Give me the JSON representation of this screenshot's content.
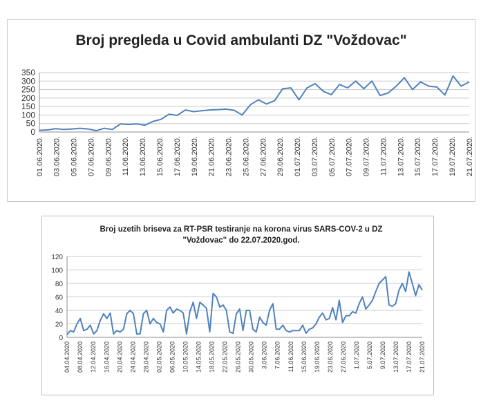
{
  "chart_data": [
    {
      "type": "line",
      "title": "Broj pregleda u Covid ambulanti DZ \"Voždovac\"",
      "xlabel": "",
      "ylabel": "",
      "ylim": [
        0,
        350
      ],
      "yticks": [
        0,
        50,
        100,
        150,
        200,
        250,
        300,
        350
      ],
      "grid": "horizontal",
      "legend": "none",
      "line_color": "#4f81bd",
      "x_tick_labels": [
        "01.06.2020.",
        "03.06.2020.",
        "05.06.2020.",
        "07.06.2020.",
        "09.06.2020.",
        "11.06.2020.",
        "13.06.2020.",
        "15.06.2020.",
        "17.06.2020.",
        "19.06.2020.",
        "21.06.2020.",
        "23.06.2020.",
        "25.06.2020.",
        "27.06.2020.",
        "29.06.2020.",
        "01.07.2020.",
        "03.07.2020.",
        "05.07.2020.",
        "07.07.2020.",
        "09.07.2020.",
        "11.07.2020.",
        "13.07.2020.",
        "15.07.2020.",
        "17.07.2020.",
        "19.07.2020.",
        "21.07.2020."
      ],
      "x_start": "01.06.2020.",
      "x_end": "22.07.2020.",
      "series": [
        {
          "values": [
            10,
            12,
            20,
            15,
            18,
            22,
            18,
            8,
            22,
            15,
            48,
            45,
            48,
            40,
            62,
            75,
            105,
            98,
            130,
            120,
            125,
            130,
            132,
            135,
            128,
            100,
            160,
            190,
            165,
            185,
            255,
            260,
            190,
            260,
            285,
            240,
            220,
            280,
            260,
            300,
            255,
            300,
            215,
            230,
            270,
            320,
            250,
            295,
            270,
            265,
            218,
            330,
            270,
            295
          ]
        }
      ]
    },
    {
      "type": "line",
      "title": "Broj uzetih briseva za RT-PSR testiranje na korona  virus SARS-COV-2 u DZ \"Voždovac\" do 22.07.2020.god.",
      "title_lines": [
        "Broj uzetih briseva za RT-PSR testiranje na korona  virus SARS-COV-2 u DZ",
        "\"Voždovac\" do 22.07.2020.god."
      ],
      "xlabel": "",
      "ylabel": "",
      "ylim": [
        0,
        120
      ],
      "yticks": [
        0,
        20,
        40,
        60,
        80,
        100,
        120
      ],
      "grid": "horizontal",
      "legend": "none",
      "line_color": "#4f81bd",
      "x_tick_labels": [
        "04.04.2020",
        "08.04.2020",
        "12.04.2020",
        "16.04.2020",
        "20.04.2020",
        "24.04.2020",
        "28.04.2020",
        "02.05.2020",
        "06.05.2020",
        "10.05.2020",
        "14.05.2020",
        "18.05.2020",
        "22.05.2020",
        "26.05.2020",
        "30.05.2020",
        "3.06.2020",
        "7.06.2020",
        "11.06.2020",
        "15.06.2020",
        "19.06.2020",
        "23.06.2020",
        "27.06.2020",
        "1.07.2020",
        "5.07.2020",
        "9.07.2020",
        "13.07.2020",
        "17.07.2020",
        "21.07.2020"
      ],
      "x_start": "04.04.2020",
      "x_end": "22.07.2020",
      "series": [
        {
          "values": [
            4,
            10,
            8,
            20,
            28,
            10,
            12,
            18,
            5,
            10,
            25,
            35,
            28,
            36,
            5,
            10,
            8,
            12,
            35,
            40,
            35,
            5,
            5,
            35,
            40,
            20,
            28,
            22,
            20,
            8,
            40,
            45,
            36,
            42,
            40,
            36,
            5,
            38,
            52,
            28,
            52,
            48,
            43,
            8,
            65,
            60,
            45,
            48,
            40,
            8,
            6,
            35,
            42,
            10,
            40,
            40,
            12,
            8,
            30,
            22,
            18,
            40,
            50,
            12,
            12,
            18,
            10,
            8,
            10,
            10,
            10,
            18,
            6,
            12,
            14,
            20,
            30,
            36,
            26,
            28,
            44,
            26,
            55,
            22,
            32,
            32,
            38,
            36,
            50,
            60,
            42,
            48,
            55,
            68,
            80,
            85,
            90,
            48,
            46,
            50,
            70,
            80,
            68,
            97,
            80,
            62,
            78,
            70
          ]
        }
      ]
    }
  ]
}
